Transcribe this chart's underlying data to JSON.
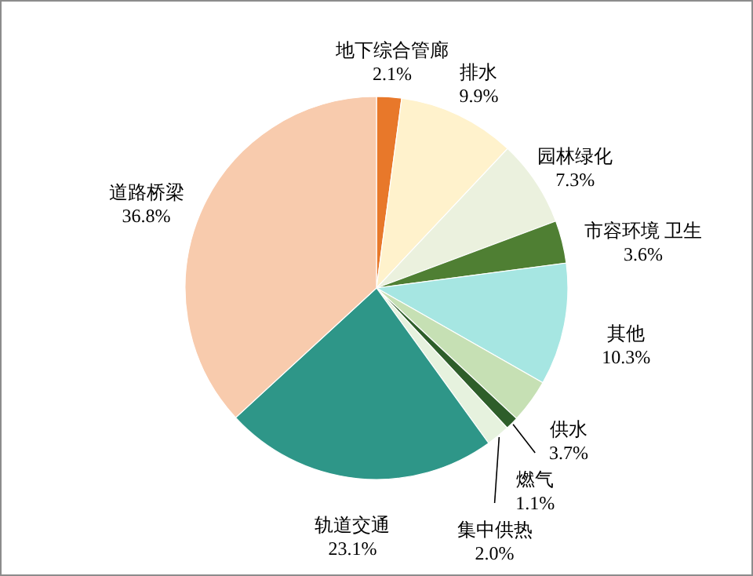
{
  "chart_data": {
    "type": "pie",
    "categories": [
      "地下综合管廊",
      "排水",
      "园林绿化",
      "市容环境 卫生",
      "其他",
      "供水",
      "燃气",
      "集中供热",
      "轨道交通",
      "道路桥梁"
    ],
    "values": [
      2.1,
      9.9,
      7.3,
      3.6,
      10.3,
      3.7,
      1.1,
      2.0,
      23.1,
      36.8
    ],
    "colors": [
      "#e8782a",
      "#fff2cc",
      "#ebf1de",
      "#4f7f33",
      "#a6e6e2",
      "#c6e0b4",
      "#2e5e2a",
      "#e6f2de",
      "#2e9688",
      "#f8cbad"
    ],
    "value_labels": [
      "2.1%",
      "9.9%",
      "7.3%",
      "3.6%",
      "10.3%",
      "3.7%",
      "1.1%",
      "2.0%",
      "23.1%",
      "36.8%"
    ]
  }
}
